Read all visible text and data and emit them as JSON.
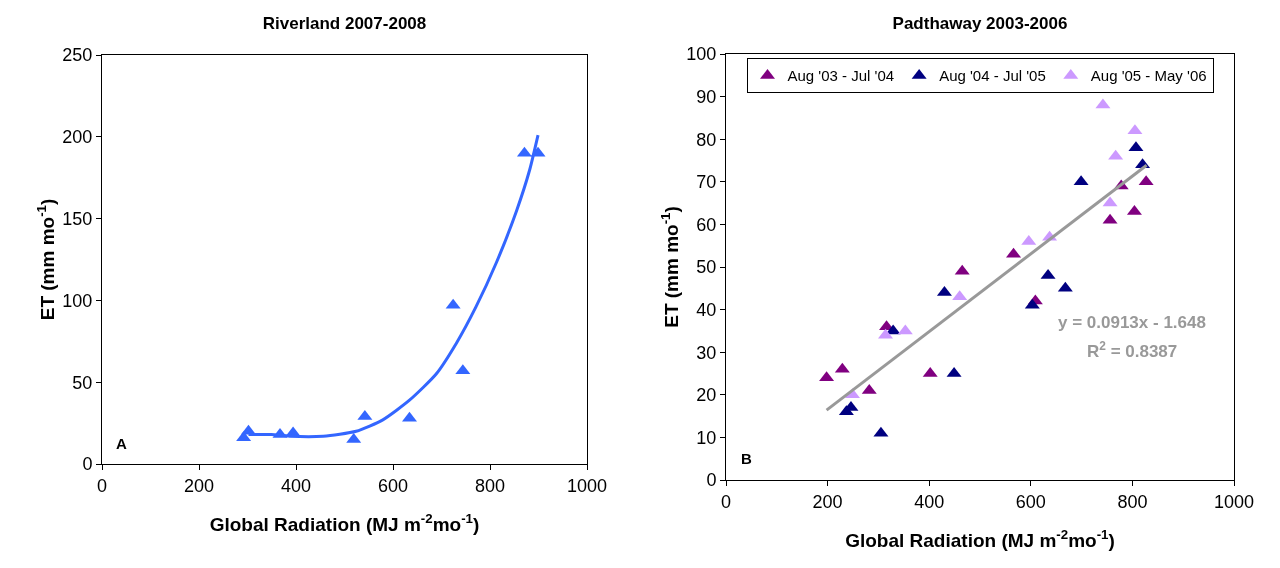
{
  "chart_data": [
    {
      "type": "scatter",
      "title": "Riverland 2007-2008",
      "xlabel": "Global Radiation (MJ m$^{-2}$mo$^{-1}$)",
      "ylabel": "ET (mm mo$^{-1}$)",
      "xlim": [
        0,
        1000
      ],
      "xticks": [
        0,
        200,
        400,
        600,
        800,
        1000
      ],
      "ylim": [
        0,
        250
      ],
      "yticks": [
        0,
        50,
        100,
        150,
        200,
        250
      ],
      "grid": false,
      "legend": false,
      "marker": "triangle",
      "annotations": [
        "A"
      ],
      "series": [
        {
          "color": "#3366ff",
          "x": [
            292,
            302,
            367,
            394,
            519,
            542,
            634,
            724,
            744,
            871,
            899
          ],
          "values": [
            16,
            20,
            18,
            19,
            15,
            29,
            28,
            97,
            57,
            190,
            190
          ]
        },
        {
          "type": "line",
          "marker": "none",
          "color": "#3366ff",
          "x": [
            302,
            349,
            387,
            456,
            524,
            579,
            634,
            689,
            731,
            771,
            813,
            855,
            882,
            899
          ],
          "values": [
            18,
            18,
            17,
            17,
            20,
            27,
            39,
            55,
            74,
            96,
            123,
            155,
            180,
            201
          ]
        }
      ]
    },
    {
      "type": "scatter",
      "title": "Padthaway 2003-2006",
      "xlabel": "Global Radiation (MJ m$^{-2}$mo$^{-1}$)",
      "ylabel": "ET (mm mo$^{-1}$)",
      "xlim": [
        0,
        1000
      ],
      "xticks": [
        0,
        200,
        400,
        600,
        800,
        1000
      ],
      "ylim": [
        0,
        100
      ],
      "yticks": [
        0,
        10,
        20,
        30,
        40,
        50,
        60,
        70,
        80,
        90,
        100
      ],
      "grid": false,
      "legend": "top",
      "marker": "triangle",
      "annotations": [
        "B",
        "y = 0.0913x - 1.648",
        "R$^{2}$ = 0.8387"
      ],
      "series": [
        {
          "name": "Aug '03 - Jul '04",
          "color": "#800080",
          "x": [
            198,
            229,
            282,
            316,
            402,
            465,
            566,
            609,
            756,
            778,
            804,
            827
          ],
          "values": [
            24,
            26,
            21,
            36,
            25,
            49,
            53,
            42,
            61,
            69,
            63,
            70
          ]
        },
        {
          "name": "Aug '04 - Jul '05",
          "color": "#000080",
          "x": [
            237,
            246,
            305,
            329,
            430,
            449,
            603,
            634,
            668,
            699,
            807,
            820
          ],
          "values": [
            16,
            17,
            11,
            35,
            44,
            25,
            41,
            48,
            45,
            70,
            78,
            74
          ]
        },
        {
          "name": "Aug '05 - May '06",
          "color": "#cc99ff",
          "x": [
            249,
            314,
            353,
            460,
            596,
            637,
            742,
            805,
            767,
            756
          ],
          "values": [
            20,
            34,
            35,
            43,
            56,
            57,
            88,
            82,
            76,
            65
          ]
        },
        {
          "type": "line",
          "marker": "none",
          "color": "#999999",
          "x": [
            198,
            828
          ],
          "values": [
            16.4,
            73.9
          ]
        }
      ]
    }
  ]
}
